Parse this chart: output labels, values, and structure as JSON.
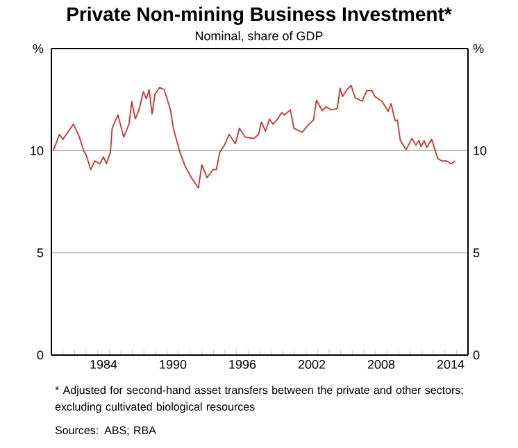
{
  "chart_data": {
    "type": "line",
    "title": "Private Non-mining Business Investment*",
    "subtitle": "Nominal, share of GDP",
    "annotations": [
      "* Adjusted for second-hand asset transfers between the private and other sectors; excluding cultivated biological resources",
      "Sources: ABS; RBA"
    ],
    "series": [
      {
        "color": "#cc3333",
        "x": [
          1980.16,
          1980.7,
          1981.0,
          1981.35,
          1981.9,
          1982.4,
          1982.8,
          1983.0,
          1983.4,
          1983.75,
          1984.2,
          1984.5,
          1984.75,
          1985.1,
          1985.25,
          1985.75,
          1986.25,
          1986.7,
          1986.95,
          1987.25,
          1987.55,
          1987.95,
          1988.2,
          1988.45,
          1988.7,
          1988.95,
          1989.35,
          1989.75,
          1990.3,
          1990.55,
          1991.1,
          1991.55,
          1992.1,
          1992.7,
          1993.0,
          1993.45,
          1993.95,
          1994.25,
          1994.55,
          1994.95,
          1995.35,
          1995.9,
          1996.25,
          1996.75,
          1997.5,
          1997.9,
          1998.15,
          1998.5,
          1998.85,
          1999.15,
          1999.55,
          1999.9,
          2000.15,
          2000.65,
          2000.95,
          2001.65,
          2002.25,
          2002.65,
          2002.9,
          2003.4,
          2003.75,
          2004.15,
          2004.7,
          2004.95,
          2005.15,
          2005.55,
          2005.9,
          2006.25,
          2006.85,
          2007.25,
          2007.7,
          2007.95,
          2008.55,
          2009.1,
          2009.35,
          2009.7,
          2009.9,
          2010.15,
          2010.65,
          2011.15,
          2011.5,
          2011.75,
          2011.95,
          2012.2,
          2012.45,
          2012.85,
          2013.4,
          2013.75,
          2014.15,
          2014.55,
          2014.9
        ],
        "values": [
          10.0,
          10.8,
          10.55,
          10.85,
          11.3,
          10.7,
          9.98,
          9.8,
          9.07,
          9.5,
          9.36,
          9.7,
          9.36,
          9.93,
          11.1,
          11.75,
          10.66,
          11.3,
          12.4,
          11.55,
          11.97,
          12.88,
          12.54,
          12.99,
          11.79,
          12.77,
          13.1,
          12.99,
          11.97,
          11.07,
          9.93,
          9.25,
          8.68,
          8.18,
          9.3,
          8.68,
          9.07,
          9.07,
          9.93,
          10.27,
          10.8,
          10.34,
          11.1,
          10.66,
          10.6,
          10.8,
          11.4,
          10.95,
          11.55,
          11.3,
          11.55,
          11.86,
          11.75,
          12.0,
          11.1,
          10.9,
          11.3,
          11.5,
          12.47,
          11.97,
          12.15,
          12.0,
          12.06,
          13.06,
          12.65,
          12.99,
          13.2,
          12.58,
          12.43,
          12.93,
          12.95,
          12.65,
          12.43,
          11.93,
          12.3,
          11.47,
          11.5,
          10.5,
          10.05,
          10.6,
          10.27,
          10.5,
          10.2,
          10.5,
          10.16,
          10.56,
          9.6,
          9.5,
          9.5,
          9.36,
          9.5
        ]
      }
    ],
    "xlim": [
      1980,
      2016
    ],
    "xticks": [
      {
        "value": 1981,
        "label": null
      },
      {
        "value": 1982,
        "label": null
      },
      {
        "value": 1983,
        "label": null
      },
      {
        "value": 1984,
        "label": null
      },
      {
        "value": 1985,
        "label": null
      },
      {
        "value": 1986,
        "label": null
      },
      {
        "value": 1987,
        "label": null
      },
      {
        "value": 1988,
        "label": null
      },
      {
        "value": 1989,
        "label": null
      },
      {
        "value": 1990,
        "label": null
      },
      {
        "value": 1991,
        "label": null
      },
      {
        "value": 1992,
        "label": null
      },
      {
        "value": 1993,
        "label": null
      },
      {
        "value": 1994,
        "label": null
      },
      {
        "value": 1995,
        "label": null
      },
      {
        "value": 1996,
        "label": null
      },
      {
        "value": 1997,
        "label": null
      },
      {
        "value": 1998,
        "label": null
      },
      {
        "value": 1999,
        "label": null
      },
      {
        "value": 2000,
        "label": null
      },
      {
        "value": 2001,
        "label": null
      },
      {
        "value": 2002,
        "label": null
      },
      {
        "value": 2003,
        "label": null
      },
      {
        "value": 2004,
        "label": null
      },
      {
        "value": 2005,
        "label": null
      },
      {
        "value": 2006,
        "label": null
      },
      {
        "value": 2007,
        "label": null
      },
      {
        "value": 2008,
        "label": null
      },
      {
        "value": 2009,
        "label": null
      },
      {
        "value": 2010,
        "label": null
      },
      {
        "value": 2011,
        "label": null
      },
      {
        "value": 2012,
        "label": null
      },
      {
        "value": 2013,
        "label": null
      },
      {
        "value": 2014,
        "label": null
      },
      {
        "value": 2015,
        "label": null
      },
      {
        "value": 1984.5,
        "label": "1984"
      },
      {
        "value": 1990.5,
        "label": "1990"
      },
      {
        "value": 1996.5,
        "label": "1996"
      },
      {
        "value": 2002.5,
        "label": "2002"
      },
      {
        "value": 2008.5,
        "label": "2008"
      },
      {
        "value": 2014.5,
        "label": "2014"
      }
    ],
    "ylim": [
      0,
      15
    ],
    "yticks": [
      0,
      5,
      10,
      {
        "value": 15,
        "label": "%"
      }
    ],
    "y2lim": [
      0,
      15
    ],
    "y2ticks": [
      0,
      5,
      10,
      {
        "value": 15,
        "label": "%"
      }
    ],
    "grid": "y",
    "marker": "none",
    "line_style": "solid"
  }
}
